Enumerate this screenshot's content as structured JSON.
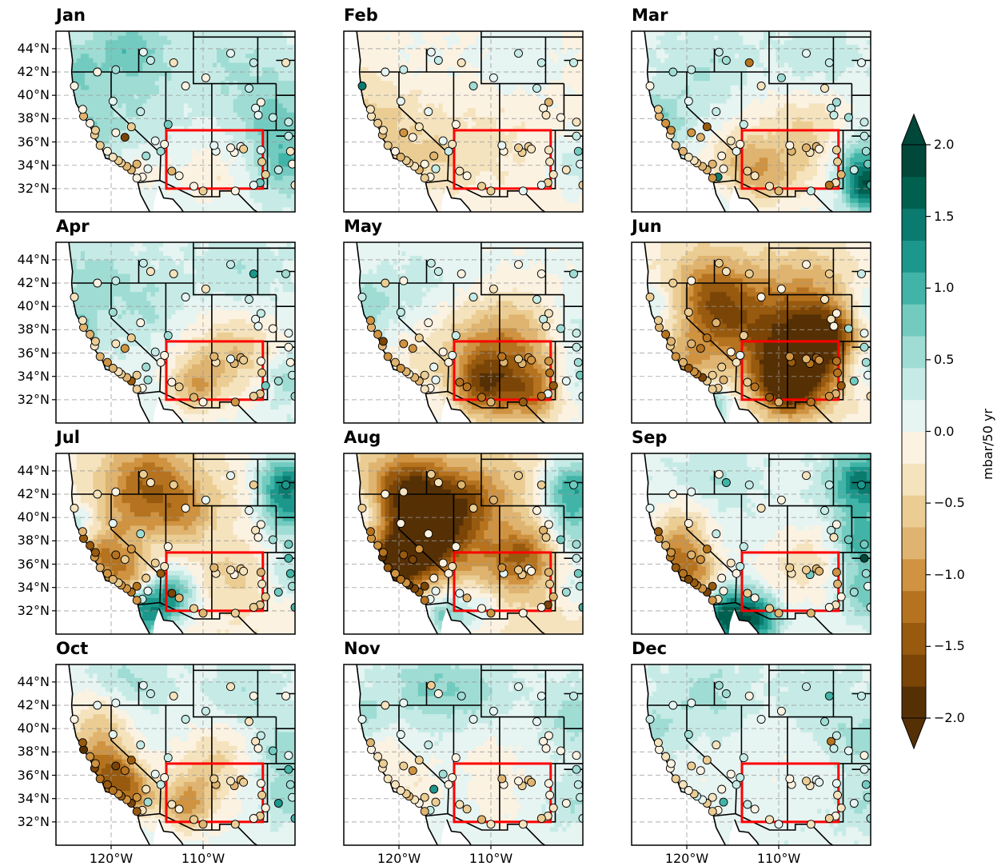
{
  "panels": [
    {
      "title": "Jan",
      "pattern": "jan"
    },
    {
      "title": "Feb",
      "pattern": "feb"
    },
    {
      "title": "Mar",
      "pattern": "mar"
    },
    {
      "title": "Apr",
      "pattern": "apr"
    },
    {
      "title": "May",
      "pattern": "may"
    },
    {
      "title": "Jun",
      "pattern": "jun"
    },
    {
      "title": "Jul",
      "pattern": "jul"
    },
    {
      "title": "Aug",
      "pattern": "aug"
    },
    {
      "title": "Sep",
      "pattern": "sep"
    },
    {
      "title": "Oct",
      "pattern": "oct"
    },
    {
      "title": "Nov",
      "pattern": "nov"
    },
    {
      "title": "Dec",
      "pattern": "dec"
    }
  ],
  "map_extent": {
    "lon_min": -126,
    "lon_max": -100,
    "lat_min": 30,
    "lat_max": 45.5
  },
  "lat_ticks": [
    {
      "value": 44,
      "label": "44°N"
    },
    {
      "value": 42,
      "label": "42°N"
    },
    {
      "value": 40,
      "label": "40°N"
    },
    {
      "value": 38,
      "label": "38°N"
    },
    {
      "value": 36,
      "label": "36°N"
    },
    {
      "value": 34,
      "label": "34°N"
    },
    {
      "value": 32,
      "label": "32°N"
    }
  ],
  "lon_ticks": [
    {
      "value": -120,
      "label": "120°W"
    },
    {
      "value": -110,
      "label": "110°W"
    }
  ],
  "highlight_box": {
    "lon_min": -114,
    "lon_max": -103.5,
    "lat_min": 32,
    "lat_max": 37,
    "color": "#ff0000"
  },
  "colorbar": {
    "label": "mbar/50 yr",
    "min": -2.0,
    "max": 2.0,
    "step": 0.25,
    "ticks": [
      {
        "value": 2.0,
        "label": "2.0"
      },
      {
        "value": 1.5,
        "label": "1.5"
      },
      {
        "value": 1.0,
        "label": "1.0"
      },
      {
        "value": 0.5,
        "label": "0.5"
      },
      {
        "value": 0.0,
        "label": "0.0"
      },
      {
        "value": -0.5,
        "label": "−0.5"
      },
      {
        "value": -1.0,
        "label": "−1.0"
      },
      {
        "value": -1.5,
        "label": "−1.5"
      },
      {
        "value": -2.0,
        "label": "−2.0"
      }
    ],
    "colors": [
      "#563005",
      "#7a4507",
      "#975a0f",
      "#b6731f",
      "#cf9341",
      "#dfb470",
      "#ebcd93",
      "#f5e3be",
      "#fbf2e2",
      "#e6f4f2",
      "#c6ebe6",
      "#9fdcd4",
      "#73cbc0",
      "#41b4a7",
      "#1c978b",
      "#0b7b6f",
      "#00604f",
      "#01473a"
    ]
  },
  "stations": [
    {
      "lon": -121.5,
      "lat": 42.0
    },
    {
      "lon": -119.5,
      "lat": 42.2
    },
    {
      "lon": -116.5,
      "lat": 43.7
    },
    {
      "lon": -115.7,
      "lat": 43.0
    },
    {
      "lon": -113.2,
      "lat": 42.8
    },
    {
      "lon": -109.7,
      "lat": 41.5
    },
    {
      "lon": -107.0,
      "lat": 43.6
    },
    {
      "lon": -104.5,
      "lat": 42.8
    },
    {
      "lon": -101.0,
      "lat": 42.8
    },
    {
      "lon": -111.9,
      "lat": 40.8
    },
    {
      "lon": -105.0,
      "lat": 40.6
    },
    {
      "lon": -104.3,
      "lat": 38.9
    },
    {
      "lon": -104.0,
      "lat": 38.3
    },
    {
      "lon": -102.4,
      "lat": 38.1
    },
    {
      "lon": -100.7,
      "lat": 37.7
    },
    {
      "lon": -100.5,
      "lat": 35.2
    },
    {
      "lon": -100.3,
      "lat": 34.1
    },
    {
      "lon": -100.0,
      "lat": 32.3
    },
    {
      "lon": -103.2,
      "lat": 33.2
    },
    {
      "lon": -103.8,
      "lat": 32.5
    },
    {
      "lon": -104.5,
      "lat": 32.3
    },
    {
      "lon": -106.5,
      "lat": 31.8
    },
    {
      "lon": -110.0,
      "lat": 31.8
    },
    {
      "lon": -111.0,
      "lat": 32.2
    },
    {
      "lon": -112.6,
      "lat": 33.1
    },
    {
      "lon": -113.4,
      "lat": 33.5
    },
    {
      "lon": -116.0,
      "lat": 33.7
    },
    {
      "lon": -116.6,
      "lat": 33.0
    },
    {
      "lon": -117.2,
      "lat": 32.9
    },
    {
      "lon": -117.8,
      "lat": 33.6
    },
    {
      "lon": -118.3,
      "lat": 33.9
    },
    {
      "lon": -118.9,
      "lat": 34.2
    },
    {
      "lon": -119.2,
      "lat": 34.4
    },
    {
      "lon": -119.8,
      "lat": 34.7
    },
    {
      "lon": -120.4,
      "lat": 35.2
    },
    {
      "lon": -121.2,
      "lat": 35.7
    },
    {
      "lon": -121.8,
      "lat": 36.6
    },
    {
      "lon": -121.7,
      "lat": 37.0
    },
    {
      "lon": -122.3,
      "lat": 37.6
    },
    {
      "lon": -123.0,
      "lat": 38.2
    },
    {
      "lon": -123.1,
      "lat": 38.8
    },
    {
      "lon": -124.0,
      "lat": 40.8
    },
    {
      "lon": -119.8,
      "lat": 39.5
    },
    {
      "lon": -119.5,
      "lat": 36.8
    },
    {
      "lon": -118.5,
      "lat": 36.4
    },
    {
      "lon": -117.2,
      "lat": 34.1
    },
    {
      "lon": -116.2,
      "lat": 34.8
    },
    {
      "lon": -114.6,
      "lat": 35.2
    },
    {
      "lon": -115.2,
      "lat": 36.1
    },
    {
      "lon": -117.8,
      "lat": 37.3
    },
    {
      "lon": -116.8,
      "lat": 38.6
    },
    {
      "lon": -114.2,
      "lat": 35.8
    },
    {
      "lon": -105.9,
      "lat": 35.6
    },
    {
      "lon": -106.6,
      "lat": 35.1
    },
    {
      "lon": -105.6,
      "lat": 35.4
    },
    {
      "lon": -107.0,
      "lat": 35.5
    },
    {
      "lon": -108.6,
      "lat": 35.2
    },
    {
      "lon": -103.7,
      "lat": 35.3
    },
    {
      "lon": -103.6,
      "lat": 34.3
    },
    {
      "lon": -101.8,
      "lat": 33.6
    },
    {
      "lon": -100.7,
      "lat": 36.5
    },
    {
      "lon": -103.7,
      "lat": 39.4
    },
    {
      "lon": -113.8,
      "lat": 37.5
    },
    {
      "lon": -108.8,
      "lat": 35.7
    }
  ]
}
